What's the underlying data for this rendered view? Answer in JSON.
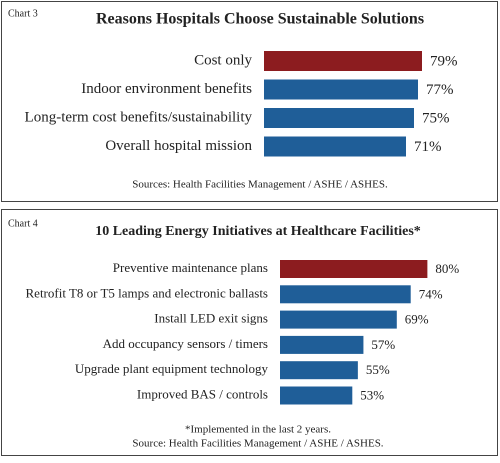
{
  "chart_data": [
    {
      "type": "bar",
      "label": "Chart 3",
      "title": "Reasons Hospitals Choose Sustainable Solutions",
      "categories": [
        "Cost only",
        "Indoor environment benefits",
        "Long-term cost benefits/sustainability",
        "Overall hospital mission"
      ],
      "values": [
        79,
        77,
        75,
        71
      ],
      "value_labels": [
        "79%",
        "77%",
        "75%",
        "71%"
      ],
      "colors": [
        "#8c1c1f",
        "#1f5e98",
        "#1f5e98",
        "#1f5e98"
      ],
      "xlim": [
        0,
        100
      ],
      "source": "Sources: Health Facilities Management / ASHE / ASHES."
    },
    {
      "type": "bar",
      "label": "Chart 4",
      "title": "10 Leading Energy Initiatives at Healthcare Facilities*",
      "categories": [
        "Preventive maintenance plans",
        "Retrofit T8 or T5 lamps and electronic ballasts",
        "Install LED exit signs",
        "Add occupancy sensors / timers",
        "Upgrade plant equipment technology",
        "Improved BAS / controls"
      ],
      "values": [
        80,
        74,
        69,
        57,
        55,
        53
      ],
      "value_labels": [
        "80%",
        "74%",
        "69%",
        "57%",
        "55%",
        "53%"
      ],
      "colors": [
        "#8c1c1f",
        "#1f5e98",
        "#1f5e98",
        "#1f5e98",
        "#1f5e98",
        "#1f5e98"
      ],
      "xlim": [
        27,
        100
      ],
      "footnote": "*Implemented in the last 2 years.",
      "source": "Source: Health Facilities Management / ASHE / ASHES."
    }
  ]
}
